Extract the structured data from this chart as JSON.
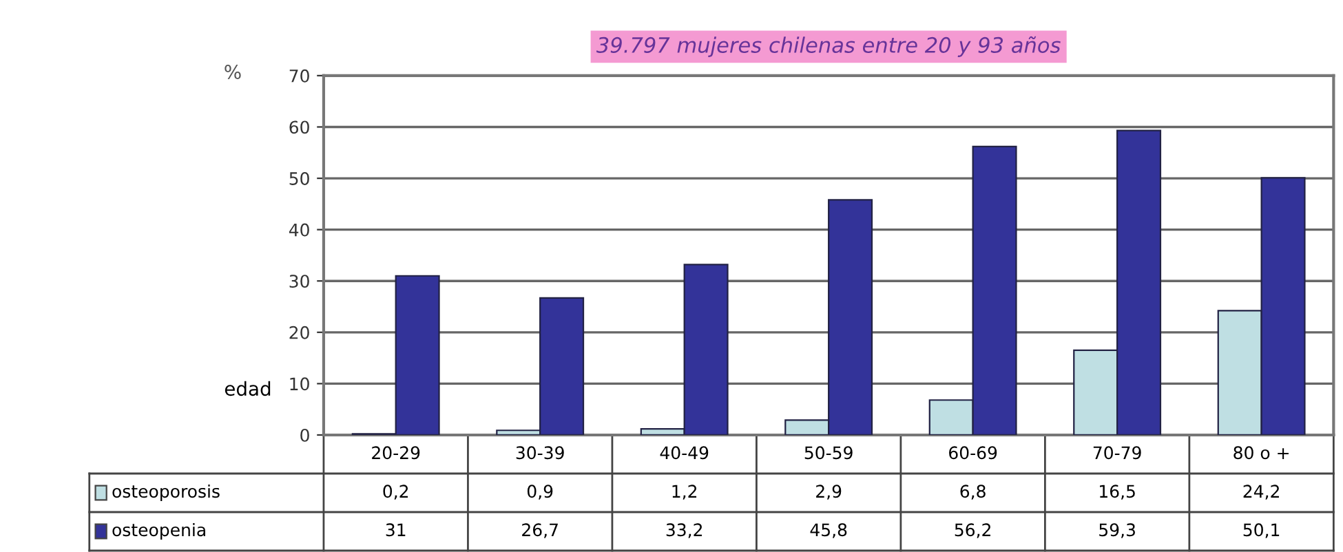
{
  "chart_data": {
    "type": "bar",
    "title": "39.797 mujeres chilenas entre 20 y 93 años",
    "ylabel": "%",
    "xlabel": "edad",
    "categories": [
      "20-29",
      "30-39",
      "40-49",
      "50-59",
      "60-69",
      "70-79",
      "80 o +"
    ],
    "series": [
      {
        "name": "osteoporosis",
        "color": "#bfdfe3",
        "values": [
          0.2,
          0.9,
          1.2,
          2.9,
          6.8,
          16.5,
          24.2
        ],
        "value_labels": [
          "0,2",
          "0,9",
          "1,2",
          "2,9",
          "6,8",
          "16,5",
          "24,2"
        ]
      },
      {
        "name": "osteopenia",
        "color": "#333399",
        "values": [
          31,
          26.7,
          33.2,
          45.8,
          56.2,
          59.3,
          50.1
        ],
        "value_labels": [
          "31",
          "26,7",
          "33,2",
          "45,8",
          "56,2",
          "59,3",
          "50,1"
        ]
      }
    ],
    "ylim": [
      0,
      70
    ],
    "yticks": [
      0,
      10,
      20,
      30,
      40,
      50,
      60,
      70
    ],
    "grid": "y",
    "legend": "bottom"
  }
}
